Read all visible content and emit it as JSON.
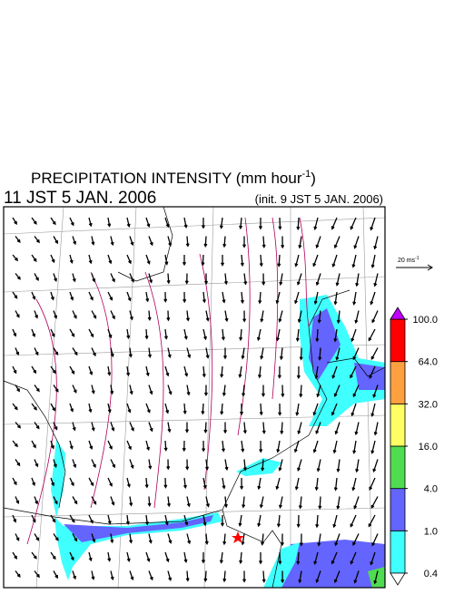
{
  "header": {
    "title": "PRECIPITATION INTENSITY (mm hour",
    "title_unit_exponent": "-1",
    "title_close": ")",
    "valid_time": "11 JST 5 JAN. 2006",
    "init_time": "(init. 9 JST 5 JAN. 2006)"
  },
  "wind_scale": {
    "label": "20 ms",
    "exponent": "-1"
  },
  "colorbar": {
    "levels": [
      {
        "value": 0.4,
        "label": "0.4"
      },
      {
        "value": 1,
        "label": "1.0"
      },
      {
        "value": 4,
        "label": "4.0"
      },
      {
        "value": 16,
        "label": "16.0"
      },
      {
        "value": 32,
        "label": "32.0"
      },
      {
        "value": 64,
        "label": "64.0"
      },
      {
        "value": 100,
        "label": "100.0"
      }
    ],
    "colors": [
      "#40ffff",
      "#6464ff",
      "#50dc50",
      "#ffff64",
      "#ffa040",
      "#ff0000"
    ],
    "under_color": "#ffffff",
    "over_color": "#c000ff"
  }
}
